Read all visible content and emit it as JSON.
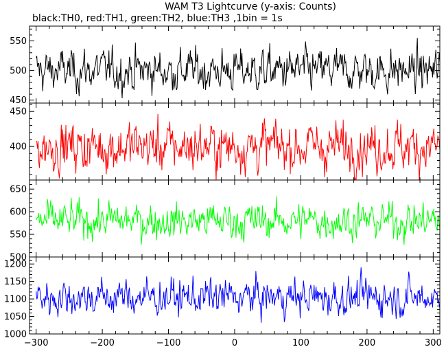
{
  "title": "WAM T3 Lightcurve (y-axis: Counts)",
  "subtitle": "black:TH0, red:TH1, green:TH2, blue:TH3 ,1bin = 1s",
  "chart_data": {
    "type": "line",
    "title": "WAM T3 Lightcurve (y-axis: Counts)",
    "subtitle": "black:TH0, red:TH1, green:TH2, blue:TH3 ,1bin = 1s",
    "xlim": [
      -310,
      310
    ],
    "x_ticks": [
      -300,
      -200,
      -100,
      0,
      100,
      200,
      300
    ],
    "panels": [
      {
        "series_name": "TH0",
        "color": "#000000",
        "ylim": [
          445,
          575
        ],
        "y_ticks": [
          450,
          500,
          550
        ],
        "mean": 500,
        "amplitude": 25,
        "x_start": -300,
        "x_end": 310,
        "step": 1
      },
      {
        "series_name": "TH1",
        "color": "#ff0000",
        "ylim": [
          352,
          462
        ],
        "y_ticks": [
          400,
          450
        ],
        "mean": 400,
        "amplitude": 25,
        "x_start": -300,
        "x_end": 310,
        "step": 1
      },
      {
        "series_name": "TH2",
        "color": "#00ff00",
        "ylim": [
          500,
          670
        ],
        "y_ticks": [
          500,
          550,
          600,
          650
        ],
        "mean": 580,
        "amplitude": 28,
        "x_start": -300,
        "x_end": 310,
        "step": 1
      },
      {
        "series_name": "TH3",
        "color": "#0000ff",
        "ylim": [
          1000,
          1220
        ],
        "y_ticks": [
          1000,
          1050,
          1100,
          1150,
          1200
        ],
        "mean": 1105,
        "amplitude": 37,
        "x_start": -300,
        "x_end": 310,
        "step": 1
      }
    ]
  }
}
